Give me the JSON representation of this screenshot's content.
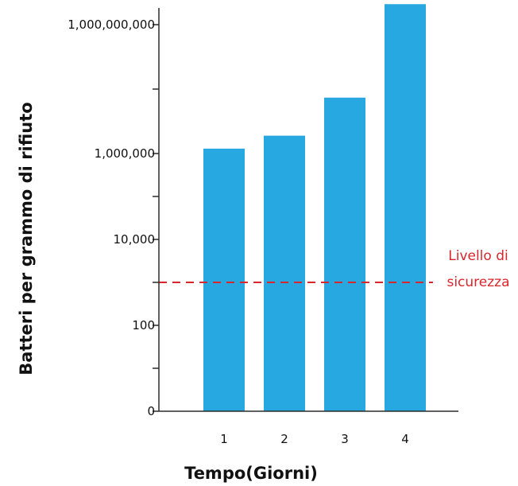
{
  "chart_data": {
    "type": "bar",
    "categories": [
      "1",
      "2",
      "3",
      "4"
    ],
    "values": [
      1300000,
      2600000,
      20000000,
      3000000000
    ],
    "title": "",
    "xlabel": "Tempo(Giorni)",
    "ylabel": "Batteri per grammo di rifiuto",
    "yscale": "log",
    "y_ticks": [
      {
        "value": 1,
        "label": "0"
      },
      {
        "value": 100,
        "label": "100"
      },
      {
        "value": 10000,
        "label": "10,000"
      },
      {
        "value": 1000000,
        "label": "1,000,000"
      },
      {
        "value": 1000000000,
        "label": "1,000,000,000"
      }
    ],
    "y_minor_ticks": [
      10,
      1000,
      100000,
      31620000
    ],
    "ylim": [
      1,
      3000000000
    ],
    "grid": false,
    "bar_color": "#27a8e0",
    "threshold": {
      "value": 1000,
      "label_lines": [
        "Livello di",
        "sicurezza"
      ],
      "color": "#d9262c",
      "style": "dashed"
    }
  }
}
